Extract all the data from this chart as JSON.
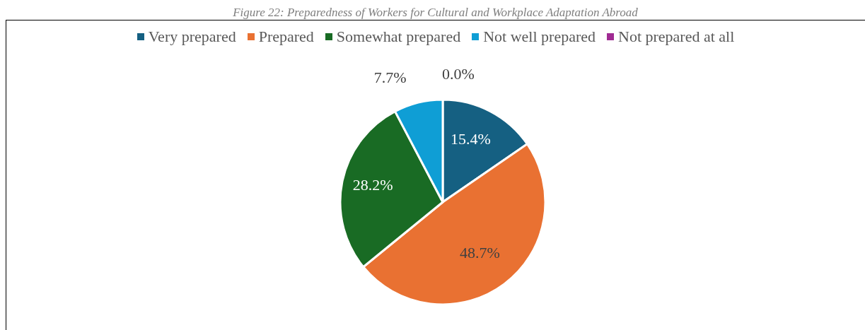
{
  "chart_data": {
    "type": "pie",
    "title": "Figure 22: Preparedness of Workers for Cultural and Workplace Adaptation Abroad",
    "categories": [
      "Very prepared",
      "Prepared",
      "Somewhat prepared",
      "Not well prepared",
      "Not prepared at all"
    ],
    "values": [
      15.4,
      48.7,
      28.2,
      7.7,
      0.0
    ],
    "colors": [
      "#156082",
      "#e97132",
      "#196b24",
      "#0f9ed5",
      "#a02b93"
    ],
    "value_labels": [
      "15.4%",
      "48.7%",
      "28.2%",
      "7.7%",
      "0.0%"
    ],
    "legend": "top"
  }
}
